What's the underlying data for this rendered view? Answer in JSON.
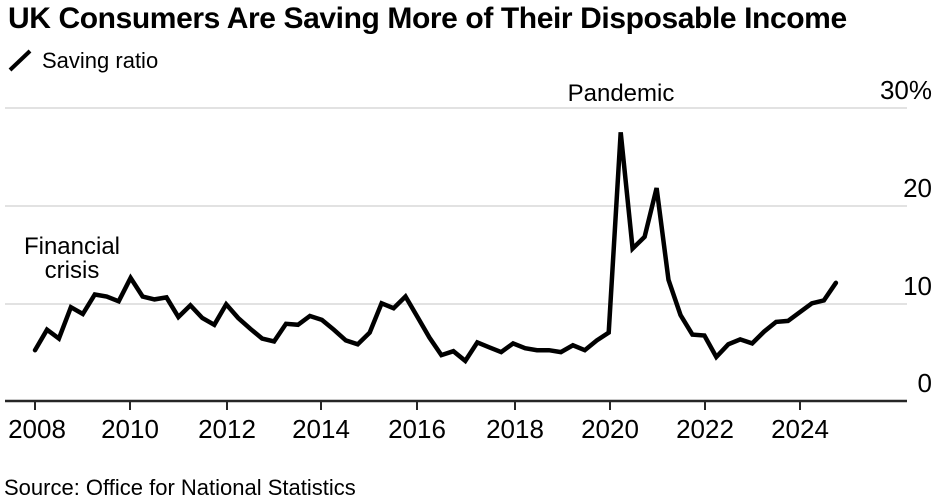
{
  "header": {
    "title": "UK Consumers Are Saving More of Their Disposable Income"
  },
  "legend": {
    "series_label": "Saving ratio"
  },
  "source": {
    "text": "Source: Office for National Statistics"
  },
  "colors": {
    "line": "#000000",
    "gridline": "#d9d9d9",
    "axis": "#262626",
    "background": "#ffffff"
  },
  "chart_data": {
    "type": "line",
    "title": "UK Consumers Are Saving More of Their Disposable Income",
    "frequency": "quarterly",
    "unit": "%",
    "legend_position": "top-left",
    "grid": "horizontal",
    "ylim": [
      0,
      30
    ],
    "y_ticks": [
      30,
      20,
      10,
      0
    ],
    "y_tick_labels": [
      "30%",
      "20",
      "10",
      "0"
    ],
    "x_tick_labels": [
      "2008",
      "2010",
      "2012",
      "2014",
      "2016",
      "2018",
      "2020",
      "2022",
      "2024"
    ],
    "annotations": {
      "financial_crisis": {
        "label": "Financial crisis",
        "lines": [
          "Financial",
          "crisis"
        ],
        "near": "2009"
      },
      "pandemic": {
        "label": "Pandemic",
        "near": "2020 Q2"
      }
    },
    "series": [
      {
        "name": "Saving ratio",
        "quarters": [
          "2008 Q1",
          "2008 Q2",
          "2008 Q3",
          "2008 Q4",
          "2009 Q1",
          "2009 Q2",
          "2009 Q3",
          "2009 Q4",
          "2010 Q1",
          "2010 Q2",
          "2010 Q3",
          "2010 Q4",
          "2011 Q1",
          "2011 Q2",
          "2011 Q3",
          "2011 Q4",
          "2012 Q1",
          "2012 Q2",
          "2012 Q3",
          "2012 Q4",
          "2013 Q1",
          "2013 Q2",
          "2013 Q3",
          "2013 Q4",
          "2014 Q1",
          "2014 Q2",
          "2014 Q3",
          "2014 Q4",
          "2015 Q1",
          "2015 Q2",
          "2015 Q3",
          "2015 Q4",
          "2016 Q1",
          "2016 Q2",
          "2016 Q3",
          "2016 Q4",
          "2017 Q1",
          "2017 Q2",
          "2017 Q3",
          "2017 Q4",
          "2018 Q1",
          "2018 Q2",
          "2018 Q3",
          "2018 Q4",
          "2019 Q1",
          "2019 Q2",
          "2019 Q3",
          "2019 Q4",
          "2020 Q1",
          "2020 Q2",
          "2020 Q3",
          "2020 Q4",
          "2021 Q1",
          "2021 Q2",
          "2021 Q3",
          "2021 Q4",
          "2022 Q1",
          "2022 Q2",
          "2022 Q3",
          "2022 Q4",
          "2023 Q1",
          "2023 Q2",
          "2023 Q3",
          "2023 Q4",
          "2024 Q1",
          "2024 Q2",
          "2024 Q3",
          "2024 Q4"
        ],
        "values": [
          5.2,
          7.3,
          6.4,
          9.6,
          8.9,
          10.9,
          10.7,
          10.2,
          12.6,
          10.7,
          10.4,
          10.6,
          8.6,
          9.8,
          8.5,
          7.8,
          9.9,
          8.5,
          7.4,
          6.4,
          6.1,
          7.9,
          7.8,
          8.7,
          8.3,
          7.3,
          6.2,
          5.8,
          7.0,
          10.0,
          9.5,
          10.7,
          8.6,
          6.5,
          4.7,
          5.1,
          4.1,
          6.0,
          5.5,
          5.0,
          5.9,
          5.4,
          5.2,
          5.2,
          5.0,
          5.7,
          5.2,
          6.2,
          7.0,
          27.5,
          15.6,
          16.8,
          21.8,
          12.4,
          8.8,
          6.8,
          6.7,
          4.5,
          5.8,
          6.3,
          5.9,
          7.1,
          8.1,
          8.2,
          9.1,
          10.0,
          10.3,
          12.1
        ]
      }
    ]
  }
}
